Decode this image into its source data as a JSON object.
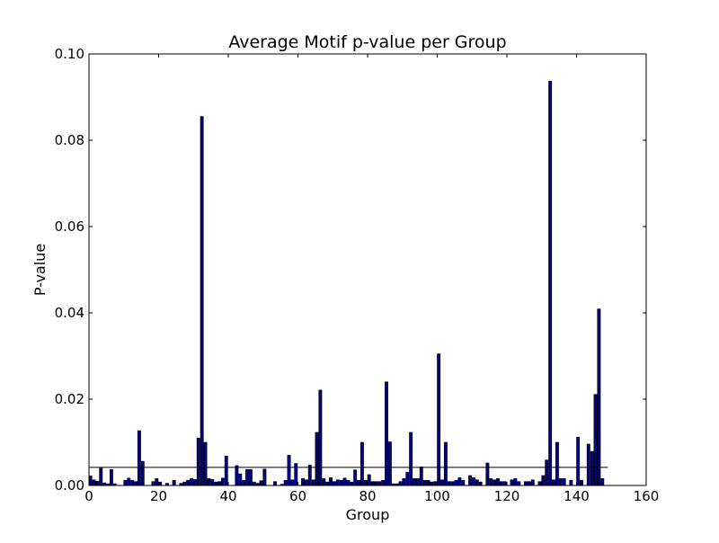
{
  "chart_data": {
    "type": "bar",
    "title": "Average Motif p-value per Group",
    "xlabel": "Group",
    "ylabel": "P-value",
    "xlim": [
      0,
      160
    ],
    "ylim": [
      0,
      0.1
    ],
    "xticks": [
      0,
      20,
      40,
      60,
      80,
      100,
      120,
      140,
      160
    ],
    "yticks": [
      0.0,
      0.02,
      0.04,
      0.06,
      0.08,
      0.1
    ],
    "xtick_labels": [
      "0",
      "20",
      "40",
      "60",
      "80",
      "100",
      "120",
      "140",
      "160"
    ],
    "ytick_labels": [
      "0.00",
      "0.02",
      "0.04",
      "0.06",
      "0.08",
      "0.10"
    ],
    "bar_color": "#00008b",
    "bar_edge_color": "#000000",
    "reference_line": {
      "y": 0.0042,
      "x_start": 0,
      "x_end": 149
    },
    "grid": false,
    "x": [
      0,
      1,
      2,
      3,
      4,
      5,
      6,
      7,
      8,
      9,
      10,
      11,
      12,
      13,
      14,
      15,
      16,
      17,
      18,
      19,
      20,
      21,
      22,
      23,
      24,
      25,
      26,
      27,
      28,
      29,
      30,
      31,
      32,
      33,
      34,
      35,
      36,
      37,
      38,
      39,
      40,
      41,
      42,
      43,
      44,
      45,
      46,
      47,
      48,
      49,
      50,
      51,
      52,
      53,
      54,
      55,
      56,
      57,
      58,
      59,
      60,
      61,
      62,
      63,
      64,
      65,
      66,
      67,
      68,
      69,
      70,
      71,
      72,
      73,
      74,
      75,
      76,
      77,
      78,
      79,
      80,
      81,
      82,
      83,
      84,
      85,
      86,
      87,
      88,
      89,
      90,
      91,
      92,
      93,
      94,
      95,
      96,
      97,
      98,
      99,
      100,
      101,
      102,
      103,
      104,
      105,
      106,
      107,
      108,
      109,
      110,
      111,
      112,
      113,
      114,
      115,
      116,
      117,
      118,
      119,
      120,
      121,
      122,
      123,
      124,
      125,
      126,
      127,
      128,
      129,
      130,
      131,
      132,
      133,
      134,
      135,
      136,
      137,
      138,
      139,
      140,
      141,
      142,
      143,
      144,
      145,
      146,
      147
    ],
    "values": [
      0.0022,
      0.0013,
      0.001,
      0.004,
      0.0006,
      0.0004,
      0.0037,
      0.0004,
      0,
      0,
      0.0012,
      0.0017,
      0.0012,
      0.0009,
      0.0127,
      0.0056,
      0,
      0,
      0.0009,
      0.0016,
      0.0008,
      0,
      0.0005,
      0,
      0.0012,
      0,
      0.0005,
      0.0008,
      0.0012,
      0.0016,
      0.0014,
      0.011,
      0.0855,
      0.01,
      0.0016,
      0.0014,
      0.0008,
      0.0009,
      0.0017,
      0.0068,
      0,
      0,
      0.0046,
      0.0027,
      0.0012,
      0.0037,
      0.0037,
      0.0008,
      0.0005,
      0.0011,
      0.0038,
      0,
      0,
      0.0009,
      0,
      0.0003,
      0.0012,
      0.007,
      0.0013,
      0.0051,
      0,
      0.0016,
      0.0013,
      0.0047,
      0.0013,
      0.0123,
      0.0221,
      0.0016,
      0.0008,
      0.0018,
      0.0009,
      0.0013,
      0.0012,
      0.0017,
      0.0012,
      0.0008,
      0.0036,
      0.0012,
      0.01,
      0.0012,
      0.0025,
      0.0009,
      0.0009,
      0.0009,
      0.0012,
      0.024,
      0.0101,
      0.0004,
      0.0004,
      0.0009,
      0.0016,
      0.0031,
      0.0123,
      0.0016,
      0.0016,
      0.0043,
      0.0012,
      0.0012,
      0.0008,
      0.0009,
      0.0305,
      0.0013,
      0.01,
      0.0009,
      0.0009,
      0.0012,
      0.0018,
      0.0012,
      0,
      0.0023,
      0.0018,
      0.0013,
      0.0008,
      0,
      0.0052,
      0.0016,
      0.0013,
      0.0016,
      0.0009,
      0.0009,
      0,
      0.0013,
      0.0016,
      0.0009,
      0,
      0.0009,
      0.0009,
      0.0013,
      0,
      0.0009,
      0.0023,
      0.0059,
      0.0937,
      0.0013,
      0.01,
      0.0016,
      0.0016,
      0,
      0.0012,
      0,
      0.0112,
      0.0012,
      0,
      0.0096,
      0.0079,
      0.0211,
      0.0409,
      0.0016
    ]
  }
}
